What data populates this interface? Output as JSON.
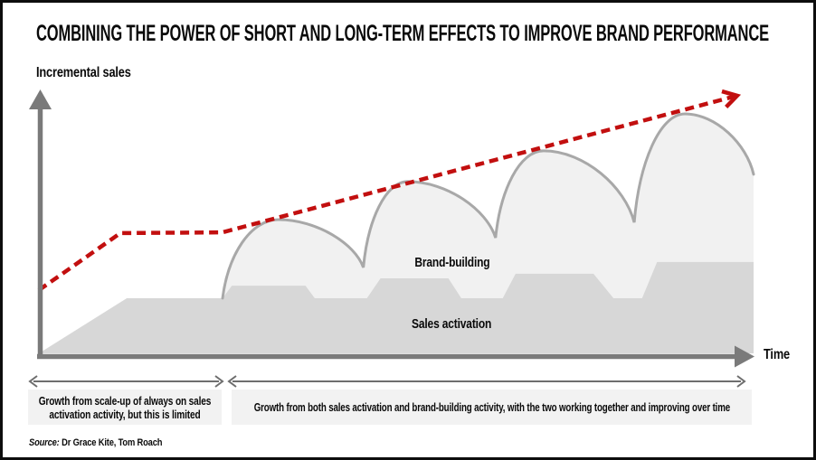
{
  "title": "COMBINING THE POWER OF SHORT AND LONG-TERM EFFECTS TO IMPROVE BRAND PERFORMANCE",
  "axes": {
    "y_label": "Incremental sales",
    "x_label": "Time"
  },
  "series_labels": {
    "brand": "Brand-building",
    "sales": "Sales activation"
  },
  "annotations": {
    "box1": {
      "lines": [
        "Growth from scale-up of always on sales",
        "activation activity, but this is limited"
      ]
    },
    "box2": {
      "text": "Growth from both sales  activation and brand-building activity, with the two working together and improving over time"
    }
  },
  "source": {
    "label": "Source:",
    "names": "Dr Grace Kite, Tom Roach"
  },
  "colors": {
    "trend_red": "#c20f0f",
    "axis_gray": "#7a7a7a",
    "hump_stroke": "#a8a8a8",
    "hump_fill": "#f1f1f1",
    "sales_fill": "#d7d7d7",
    "annotation_box_bg": "#f2f2f2",
    "range_arrow_gray": "#6e6e6e",
    "text": "#0a0a0a"
  },
  "chart_data": {
    "type": "area",
    "title": "COMBINING THE POWER OF SHORT AND LONG-TERM EFFECTS TO IMPROVE BRAND PERFORMANCE",
    "xlabel": "Time",
    "ylabel": "Incremental sales",
    "axis_ranges_note": "conceptual chart, no ticks; coordinates normalized x 0-100 (time), y 0-100 (incremental sales)",
    "grid": false,
    "legend_position": "inline-labels",
    "series": [
      {
        "name": "Sales activation",
        "type": "area",
        "color": "#d7d7d7",
        "points": [
          [
            0,
            0
          ],
          [
            12.3,
            21.2
          ],
          [
            25.7,
            21.2
          ],
          [
            27,
            26
          ],
          [
            37.3,
            26
          ],
          [
            38.6,
            21.2
          ],
          [
            45.9,
            21.2
          ],
          [
            47.8,
            28.8
          ],
          [
            57.3,
            28.8
          ],
          [
            59.1,
            21.2
          ],
          [
            64.9,
            21.2
          ],
          [
            66.7,
            30.6
          ],
          [
            77.6,
            30.6
          ],
          [
            80.4,
            21.2
          ],
          [
            84.4,
            21.2
          ],
          [
            86.5,
            35.1
          ],
          [
            100,
            35.1
          ],
          [
            100,
            0
          ]
        ]
      },
      {
        "name": "Brand-building",
        "type": "area-scalloped",
        "color": "#f1f1f1",
        "outline_color": "#a8a8a8",
        "humps": [
          {
            "start": [
              25.7,
              21.2
            ],
            "peak": [
              33.5,
              51.4
            ],
            "end": [
              45.4,
              33.0
            ]
          },
          {
            "start": [
              45.4,
              33.0
            ],
            "peak": [
              51.6,
              66.0
            ],
            "end": [
              63.9,
              44.4
            ]
          },
          {
            "start": [
              63.9,
              44.4
            ],
            "peak": [
              70.6,
              77.8
            ],
            "end": [
              83.3,
              50.3
            ]
          },
          {
            "start": [
              83.3,
              50.3
            ],
            "peak": [
              90.4,
              92.0
            ],
            "end": [
              100,
              68.8
            ]
          }
        ]
      },
      {
        "name": "red dashed trend",
        "type": "line",
        "style": "dashed-arrow",
        "color": "#c20f0f",
        "points": [
          [
            0,
            24.3
          ],
          [
            11.4,
            46.2
          ],
          [
            25.7,
            46.5
          ],
          [
            97.7,
            99.0
          ]
        ]
      }
    ],
    "annotations": [
      {
        "span_x": [
          0,
          26
        ],
        "text": "Growth from scale-up of always on sales activation activity, but this is limited"
      },
      {
        "span_x": [
          27,
          99
        ],
        "text": "Growth from both sales activation and brand-building activity, with the two working together and improving over time"
      }
    ]
  }
}
